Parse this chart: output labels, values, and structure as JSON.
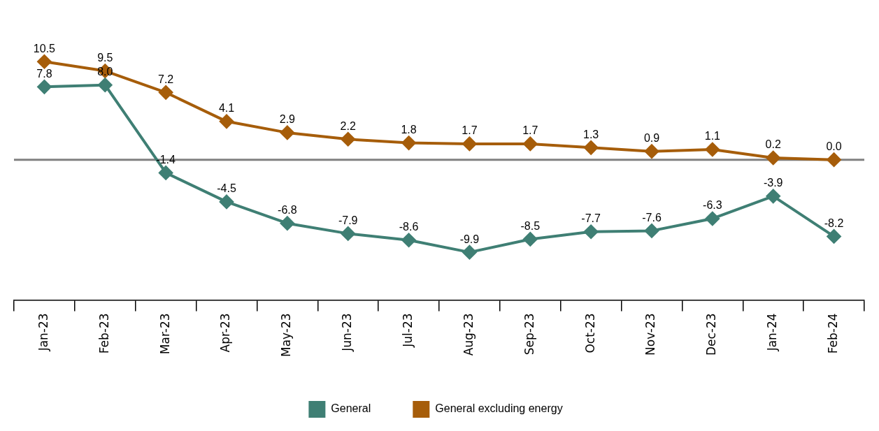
{
  "chart_data": {
    "type": "line",
    "categories": [
      "Jan-23",
      "Feb-23",
      "Mar-23",
      "Apr-23",
      "May-23",
      "Jun-23",
      "Jul-23",
      "Aug-23",
      "Sep-23",
      "Oct-23",
      "Nov-23",
      "Dec-23",
      "Jan-24",
      "Feb-24"
    ],
    "series": [
      {
        "name": "General",
        "color": "#3f7f74",
        "values": [
          7.8,
          8.0,
          -1.4,
          -4.5,
          -6.8,
          -7.9,
          -8.6,
          -9.9,
          -8.5,
          -7.7,
          -7.6,
          -6.3,
          -3.9,
          -8.2
        ],
        "value_labels": [
          "7.8",
          "8.0",
          "-1.4",
          "-4.5",
          "-6.8",
          "-7.9",
          "-8.6",
          "-9.9",
          "-8.5",
          "-7.7",
          "-7.6",
          "-6.3",
          "-3.9",
          "-8.2"
        ]
      },
      {
        "name": "General excluding energy",
        "color": "#a65d0a",
        "values": [
          10.5,
          9.5,
          7.2,
          4.1,
          2.9,
          2.2,
          1.8,
          1.7,
          1.7,
          1.3,
          0.9,
          1.1,
          0.2,
          0.0
        ],
        "value_labels": [
          "10.5",
          "9.5",
          "7.2",
          "4.1",
          "2.9",
          "2.2",
          "1.8",
          "1.7",
          "1.7",
          "1.3",
          "0.9",
          "1.1",
          "0.2",
          "0.0"
        ]
      }
    ],
    "ref_lines": [
      {
        "axis": "y",
        "value": 0,
        "color": "#808080"
      }
    ],
    "legend": "bottom",
    "grid": false,
    "marker": "diamond",
    "line_style": "solid",
    "tick_labels": "x"
  }
}
